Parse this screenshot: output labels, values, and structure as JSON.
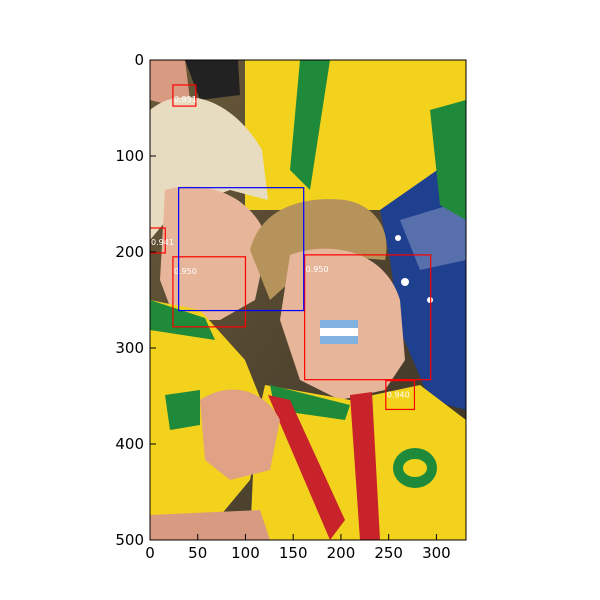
{
  "axes": {
    "x_ticks": [
      "0",
      "50",
      "100",
      "150",
      "200",
      "250",
      "300"
    ],
    "y_ticks": [
      "0",
      "100",
      "200",
      "300",
      "400",
      "500"
    ]
  },
  "photo": {
    "subject": "photograph",
    "colors": {
      "jersey_yellow": "#f2d21c",
      "jersey_green": "#1e8a3a",
      "flag_blue": "#1f3f8f",
      "skin": "#e7b59a",
      "hair_blond": "#e8dcc0",
      "hair_brown": "#b5935a",
      "lanyard_red": "#c8232b"
    }
  },
  "detections": [
    {
      "score": "0.951",
      "color": "#ff0000",
      "x": 24,
      "y": 26,
      "w": 24,
      "h": 22
    },
    {
      "score": "0.941",
      "color": "#ff0000",
      "x": 0,
      "y": 175,
      "w": 16,
      "h": 26
    },
    {
      "score": "0.950",
      "color": "#ff0000",
      "x": 24,
      "y": 205,
      "w": 76,
      "h": 73
    },
    {
      "score": "0.950",
      "color": "#ff0000",
      "x": 162,
      "y": 203,
      "w": 132,
      "h": 130
    },
    {
      "score": "0.940",
      "color": "#ff0000",
      "x": 247,
      "y": 334,
      "w": 30,
      "h": 30
    },
    {
      "score": "",
      "color": "#0000ff",
      "x": 30,
      "y": 133,
      "w": 131,
      "h": 128
    }
  ]
}
